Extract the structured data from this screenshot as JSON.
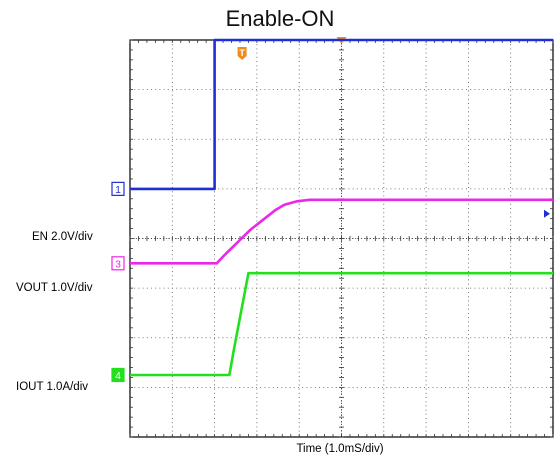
{
  "chart_data": {
    "type": "line",
    "title": "Enable-ON",
    "xlabel": "Time (1.0mS/div)",
    "ylabel": "",
    "grid": true,
    "divisions": {
      "x": 10,
      "y": 8
    },
    "x_unit": "ms",
    "xlim": [
      -3.45,
      6.55
    ],
    "trigger": {
      "label": "T",
      "time_ms": -0.8
    },
    "channels": [
      {
        "name": "EN",
        "label": "EN 2.0V/div",
        "marker": "1",
        "color": "#1f2fd6",
        "scale_per_div": 2.0,
        "unit": "V",
        "baseline_div": 5.0,
        "x": [
          -3.45,
          -1.55,
          -1.45,
          -1.45,
          -1.4,
          6.55
        ],
        "y": [
          0.0,
          0.0,
          0.0,
          3.0,
          3.0,
          3.0
        ],
        "ref_marker_div": 4.5
      },
      {
        "name": "VOUT",
        "label": "VOUT 1.0V/div",
        "marker": "3",
        "color": "#ea28e8",
        "scale_per_div": 1.0,
        "unit": "V",
        "baseline_div": 3.5,
        "x": [
          -3.45,
          -1.4,
          -1.2,
          -0.6,
          0.0,
          0.2,
          0.5,
          0.8,
          6.55
        ],
        "y": [
          0.0,
          0.0,
          0.18,
          0.68,
          1.08,
          1.18,
          1.25,
          1.28,
          1.28
        ]
      },
      {
        "name": "IOUT",
        "label": "IOUT 1.0A/div",
        "marker": "4",
        "color": "#22e01e",
        "scale_per_div": 1.0,
        "unit": "A",
        "baseline_div": 1.25,
        "x": [
          -3.45,
          -1.1,
          -1.0,
          -0.65,
          -0.4,
          6.55
        ],
        "y": [
          0.0,
          0.0,
          0.48,
          2.05,
          2.05,
          2.05
        ]
      }
    ]
  }
}
